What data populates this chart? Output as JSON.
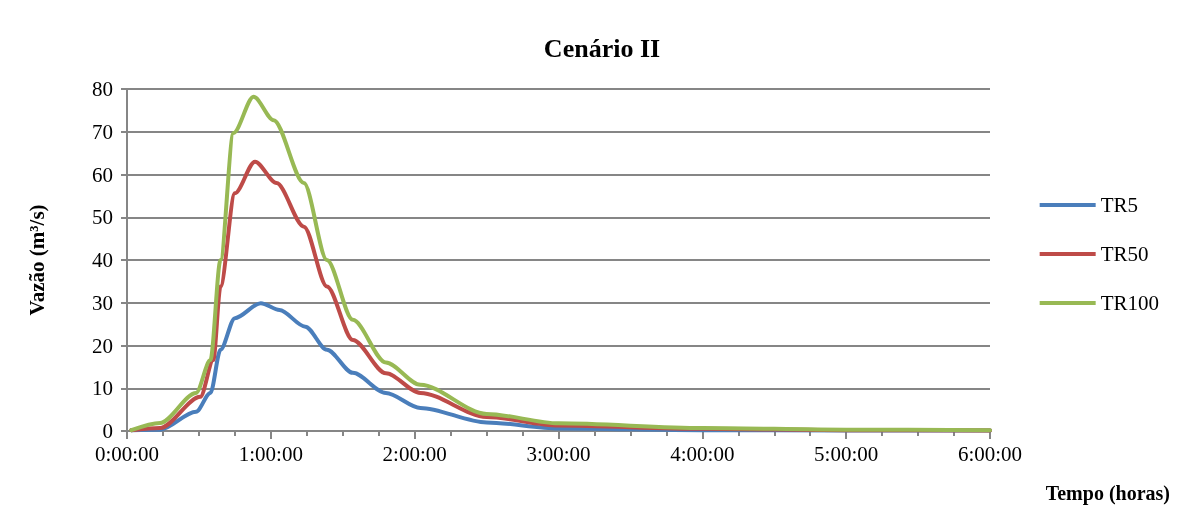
{
  "chart_data": {
    "type": "line",
    "title": "Cenário II",
    "xlabel": "Tempo (horas)",
    "ylabel": "Vazão (m³/s)",
    "xlim": [
      0,
      6
    ],
    "xticks": [
      {
        "value": 0,
        "label": "0:00:00"
      },
      {
        "value": 1,
        "label": "1:00:00"
      },
      {
        "value": 2,
        "label": "2:00:00"
      },
      {
        "value": 3,
        "label": "3:00:00"
      },
      {
        "value": 4,
        "label": "4:00:00"
      },
      {
        "value": 5,
        "label": "5:00:00"
      },
      {
        "value": 6,
        "label": "6:00:00"
      }
    ],
    "ylim": [
      0,
      80
    ],
    "yticks": [
      0,
      10,
      20,
      30,
      40,
      50,
      60,
      70,
      80
    ],
    "grid": "y",
    "legend": "right",
    "marker": "none",
    "line_style": "solid",
    "series": [
      {
        "name": "TR5",
        "color": "#4a7ebb",
        "x": [
          0.03,
          0.23,
          0.48,
          0.58,
          0.65,
          0.75,
          0.93,
          1.06,
          1.24,
          1.39,
          1.57,
          1.8,
          2.04,
          2.5,
          3,
          4,
          5,
          6
        ],
        "values": [
          0.2,
          0.3,
          4.5,
          8.9,
          19,
          26.4,
          29.9,
          28.3,
          24.4,
          19,
          13.6,
          8.9,
          5.4,
          2,
          0.6,
          0.2,
          0.1,
          0.1
        ]
      },
      {
        "name": "TR50",
        "color": "#be4b48",
        "x": [
          0.03,
          0.23,
          0.51,
          0.6,
          0.65,
          0.75,
          0.89,
          1.04,
          1.23,
          1.39,
          1.57,
          1.8,
          2.04,
          2.5,
          3,
          4,
          5,
          6
        ],
        "values": [
          0.2,
          0.7,
          8,
          16.6,
          33.8,
          55.6,
          63,
          58,
          47.8,
          33.8,
          21.3,
          13.5,
          8.9,
          3.3,
          1.3,
          0.5,
          0.2,
          0.1
        ]
      },
      {
        "name": "TR100",
        "color": "#98b954",
        "x": [
          0.03,
          0.23,
          0.48,
          0.58,
          0.65,
          0.74,
          0.88,
          1.02,
          1.23,
          1.39,
          1.57,
          1.8,
          2.04,
          2.5,
          3,
          4,
          5,
          6
        ],
        "values": [
          0.2,
          1.9,
          8.9,
          16.6,
          40,
          69.7,
          78.2,
          72.7,
          58,
          40,
          26,
          16,
          10.8,
          4,
          1.8,
          0.7,
          0.3,
          0.2
        ]
      }
    ]
  }
}
